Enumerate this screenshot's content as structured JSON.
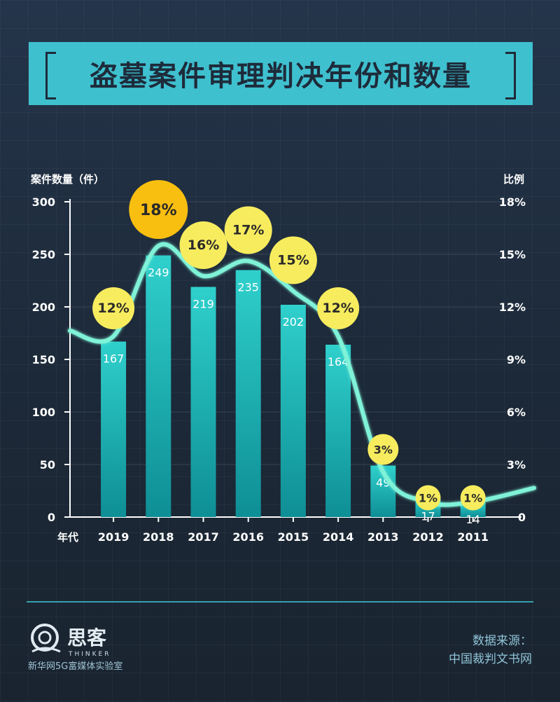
{
  "header": {
    "title": "盗墓案件审理判决年份和数量"
  },
  "chart_data": {
    "type": "bar",
    "title": "盗墓案件审理判决年份和数量",
    "xlabel": "年代",
    "ylabel": "案件数量（件）",
    "y2label": "比例",
    "categories": [
      "2019",
      "2018",
      "2017",
      "2016",
      "2015",
      "2014",
      "2013",
      "2012",
      "2011"
    ],
    "values": [
      167,
      249,
      219,
      235,
      202,
      164,
      49,
      17,
      14
    ],
    "ylim": [
      0,
      300
    ],
    "yticks": [
      "0",
      "50",
      "100",
      "150",
      "200",
      "250",
      "300"
    ],
    "y2lim": [
      0,
      18
    ],
    "y2ticks": [
      "0",
      "3%",
      "6%",
      "9%",
      "12%",
      "15%",
      "18%"
    ],
    "ratio_labels": [
      "12%",
      "18%",
      "16%",
      "17%",
      "15%",
      "12%",
      "3%",
      "1%",
      "1%"
    ],
    "ratio_values": [
      12,
      18,
      16,
      17,
      15,
      12,
      3,
      1,
      1
    ],
    "colors": {
      "bar_top": "#2fd0cc",
      "bar_bottom": "#0e8e95",
      "line": "#7ff2d8",
      "badge": "#f7ec5e",
      "badge_highlight": "#f9bf10"
    }
  },
  "footer": {
    "logo_text": "思客",
    "logo_sub_en": "THINKER",
    "logo_caption": "新华网5G富媒体实验室",
    "source_label": "数据来源：",
    "source_value": "中国裁判文书网"
  }
}
